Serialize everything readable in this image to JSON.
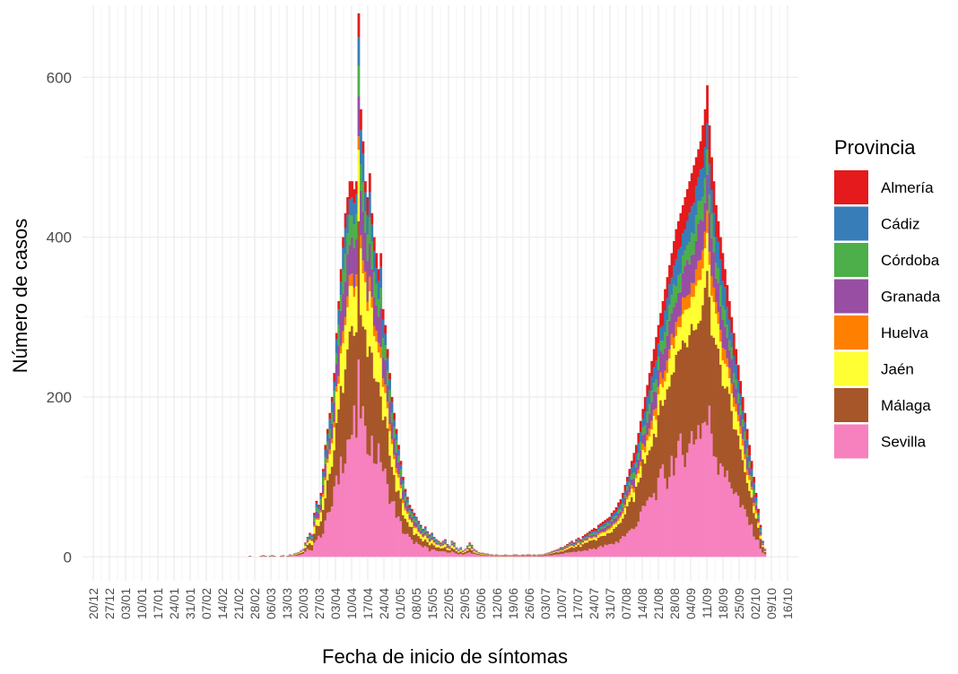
{
  "chart_data": {
    "type": "bar",
    "stacked": true,
    "xlabel": "Fecha de inicio de síntomas",
    "ylabel": "Número de casos",
    "ylim": [
      -30,
      690
    ],
    "yticks": [
      0,
      200,
      400,
      600
    ],
    "grid": true,
    "legend": {
      "title": "Provincia",
      "position": "right",
      "entries": [
        "Almería",
        "Cádiz",
        "Córdoba",
        "Granada",
        "Huelva",
        "Jaén",
        "Málaga",
        "Sevilla"
      ]
    },
    "series_colors": {
      "Sevilla": "#f781bf",
      "Málaga": "#a65628",
      "Jaén": "#ffff33",
      "Huelva": "#ff7f00",
      "Granada": "#984ea3",
      "Córdoba": "#4daf4a",
      "Cádiz": "#377eb8",
      "Almería": "#e41a1c"
    },
    "stack_order_bottom_to_top": [
      "Sevilla",
      "Málaga",
      "Jaén",
      "Huelva",
      "Granada",
      "Córdoba",
      "Cádiz",
      "Almería"
    ],
    "x_tick_labels": [
      "20/12",
      "27/12",
      "03/01",
      "10/01",
      "17/01",
      "24/01",
      "31/01",
      "07/02",
      "14/02",
      "21/02",
      "28/02",
      "06/03",
      "13/03",
      "20/03",
      "27/03",
      "03/04",
      "10/04",
      "17/04",
      "24/04",
      "01/05",
      "08/05",
      "15/05",
      "22/05",
      "29/05",
      "05/06",
      "12/06",
      "19/06",
      "26/06",
      "03/07",
      "10/07",
      "17/07",
      "24/07",
      "31/07",
      "07/08",
      "14/08",
      "21/08",
      "28/08",
      "04/09",
      "11/09",
      "18/09",
      "25/09",
      "02/10",
      "09/10",
      "16/10"
    ],
    "daily_totals": [
      0,
      0,
      0,
      0,
      0,
      0,
      0,
      0,
      0,
      0,
      0,
      0,
      0,
      0,
      0,
      0,
      0,
      0,
      0,
      0,
      0,
      0,
      0,
      0,
      0,
      0,
      0,
      0,
      0,
      0,
      0,
      0,
      0,
      0,
      0,
      0,
      0,
      0,
      0,
      0,
      0,
      0,
      0,
      0,
      0,
      0,
      0,
      0,
      0,
      0,
      0,
      0,
      0,
      0,
      0,
      0,
      0,
      0,
      0,
      0,
      0,
      0,
      0,
      0,
      0,
      0,
      0,
      0,
      0,
      0,
      1,
      0,
      0,
      0,
      0,
      1,
      2,
      1,
      0,
      1,
      2,
      1,
      0,
      0,
      1,
      2,
      0,
      1,
      3,
      2,
      4,
      5,
      6,
      8,
      10,
      18,
      25,
      30,
      28,
      55,
      70,
      65,
      80,
      110,
      140,
      160,
      180,
      200,
      230,
      280,
      320,
      360,
      400,
      430,
      450,
      470,
      470,
      460,
      470,
      680,
      560,
      520,
      470,
      450,
      480,
      430,
      400,
      380,
      360,
      380,
      310,
      290,
      260,
      230,
      200,
      180,
      160,
      140,
      120,
      100,
      85,
      75,
      65,
      60,
      55,
      50,
      45,
      40,
      35,
      38,
      32,
      28,
      30,
      25,
      22,
      20,
      18,
      20,
      22,
      16,
      14,
      20,
      18,
      12,
      10,
      12,
      8,
      10,
      14,
      18,
      15,
      10,
      8,
      6,
      5,
      5,
      4,
      4,
      3,
      3,
      2,
      3,
      2,
      2,
      2,
      3,
      2,
      2,
      2,
      3,
      3,
      2,
      2,
      3,
      2,
      3,
      3,
      2,
      3,
      2,
      3,
      3,
      3,
      4,
      5,
      6,
      7,
      8,
      9,
      10,
      12,
      12,
      14,
      16,
      18,
      20,
      18,
      22,
      24,
      22,
      26,
      28,
      30,
      32,
      34,
      36,
      35,
      40,
      42,
      44,
      46,
      48,
      50,
      55,
      58,
      62,
      68,
      72,
      80,
      90,
      100,
      110,
      120,
      130,
      140,
      155,
      170,
      185,
      200,
      215,
      230,
      245,
      260,
      275,
      290,
      305,
      320,
      335,
      350,
      365,
      380,
      395,
      410,
      420,
      430,
      440,
      450,
      460,
      470,
      480,
      490,
      500,
      510,
      520,
      540,
      560,
      590,
      540,
      500,
      470,
      440,
      420,
      400,
      380,
      360,
      340,
      320,
      300,
      280,
      260,
      240,
      220,
      200,
      180,
      160,
      140,
      120,
      100,
      80,
      60,
      40,
      20,
      10
    ]
  }
}
